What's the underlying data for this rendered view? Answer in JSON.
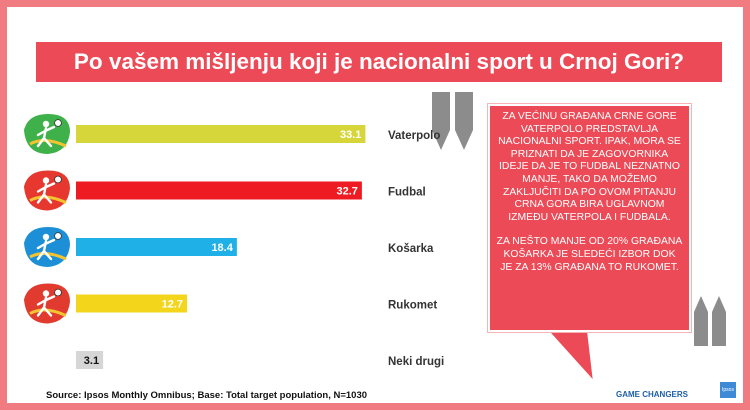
{
  "title": "Po vašem mišljenju koji je nacionalni sport u Crnoj Gori?",
  "chart_data": {
    "type": "bar",
    "orientation": "horizontal",
    "categories": [
      "Vaterpolo",
      "Fudbal",
      "Košarka",
      "Rukomet",
      "Neki drugi"
    ],
    "values": [
      33.1,
      32.7,
      18.4,
      12.7,
      3.1
    ],
    "value_labels": [
      "33.1",
      "32.7",
      "18.4",
      "12.7",
      "3.1"
    ],
    "bar_colors": [
      "#d6d63b",
      "#ee1b22",
      "#1eb0e6",
      "#f3d51c",
      "#d6d6d6"
    ],
    "value_label_colors": [
      "#ffffff",
      "#ffffff",
      "#ffffff",
      "#ffffff",
      "#111111"
    ],
    "icon_colors": [
      "#3fb14a",
      "#e6382f",
      "#1c8fd6",
      "#e13a2e",
      ""
    ],
    "icons": [
      "water-polo-icon",
      "football-icon",
      "basketball-icon",
      "handball-icon",
      ""
    ],
    "xlim": [
      0,
      35
    ],
    "grid": false,
    "legend": "none"
  },
  "quote": {
    "paragraph1": "Za većinu građana Crne Gore vaterpolo predstavlja nacionalni sport. Ipak, mora se priznati da je zagovornika ideje da je to fudbal neznatno manje, tako da možemo zaključiti da po ovom pitanju Crna Gora bira uglavnom između vaterpola i fudbala.",
    "paragraph2": "Za nešto manje od 20% građana košarka je sledeći izbor dok je za 13% građana to rukomet."
  },
  "source": "Source: Ipsos Monthly Omnibus; Base: Total target population, N=1030",
  "brand": "GAME CHANGERS",
  "logo_text": "Ipsos"
}
